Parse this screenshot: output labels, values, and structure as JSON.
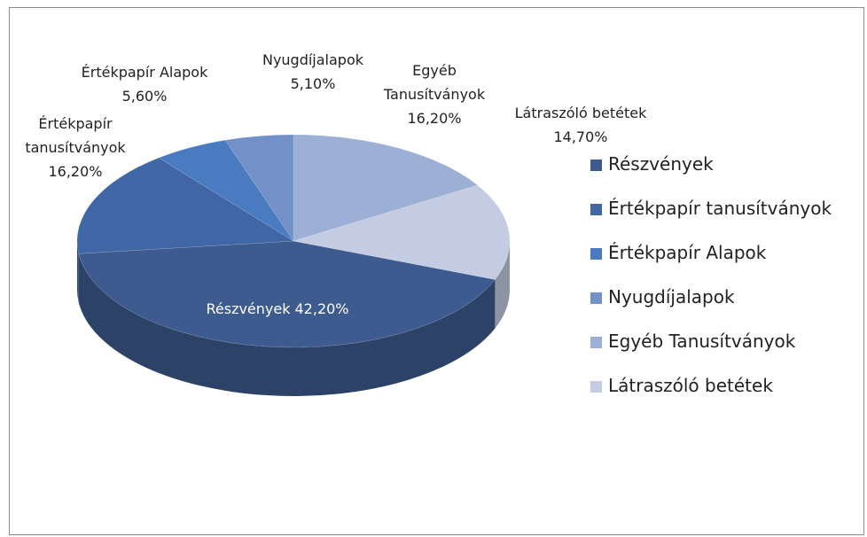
{
  "chart_data": {
    "type": "pie3d",
    "categories": [
      "Részvények",
      "Értékpapír tanusítványok",
      "Értékpapír Alapok",
      "Nyugdíjalapok",
      "Egyéb Tanusítványok",
      "Látraszóló betétek"
    ],
    "values": [
      42.2,
      16.2,
      5.6,
      5.1,
      16.2,
      14.7
    ],
    "value_labels": [
      "42,20%",
      "16,20%",
      "5,60%",
      "5,10%",
      "16,20%",
      "14,70%"
    ],
    "colors": [
      "#3d5b8e",
      "#4066a5",
      "#4a7ac0",
      "#7291c8",
      "#9cafd4",
      "#c3cce2"
    ],
    "legend": "right"
  }
}
